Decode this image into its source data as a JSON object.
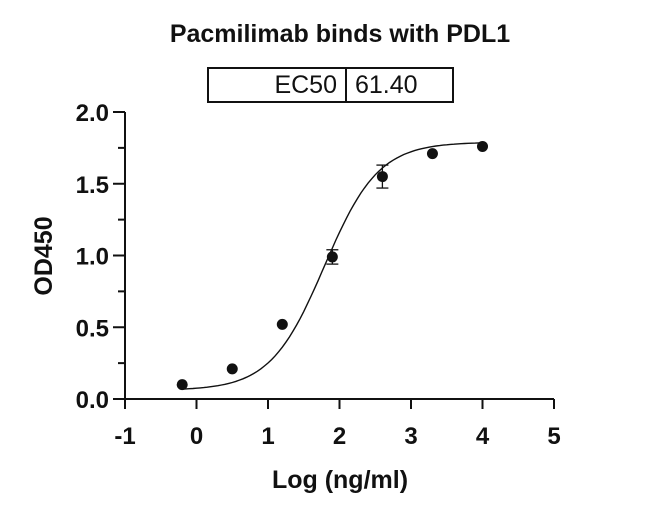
{
  "chart_data": {
    "type": "scatter",
    "title": "Pacmilimab binds with PDL1",
    "xlabel": "Log (ng/ml)",
    "ylabel": "OD450",
    "xlim": [
      -1,
      5
    ],
    "ylim": [
      0,
      2.0
    ],
    "x_ticks": [
      "-1",
      "0",
      "1",
      "2",
      "3",
      "4",
      "5"
    ],
    "y_ticks": [
      "0.0",
      "0.5",
      "1.0",
      "1.5",
      "2.0"
    ],
    "grid": false,
    "fit": "4PL sigmoidal curve",
    "annotation": {
      "label": "EC50",
      "value": "61.40"
    },
    "series": [
      {
        "name": "Pacmilimab",
        "x": [
          -0.2,
          0.5,
          1.2,
          1.9,
          2.6,
          3.3,
          4.0
        ],
        "y": [
          0.1,
          0.21,
          0.52,
          0.99,
          1.55,
          1.71,
          1.76
        ],
        "error": [
          0.0,
          0.0,
          0.0,
          0.05,
          0.08,
          0.0,
          0.0
        ]
      }
    ]
  },
  "title": "Pacmilimab binds with PDL1",
  "ec50": {
    "label": "EC50",
    "value": "61.40"
  },
  "axes": {
    "x_title": "Log (ng/ml)",
    "y_title": "OD450",
    "x_ticks": [
      "-1",
      "0",
      "1",
      "2",
      "3",
      "4",
      "5"
    ],
    "y_ticks": [
      "0.0",
      "0.5",
      "1.0",
      "1.5",
      "2.0"
    ]
  }
}
